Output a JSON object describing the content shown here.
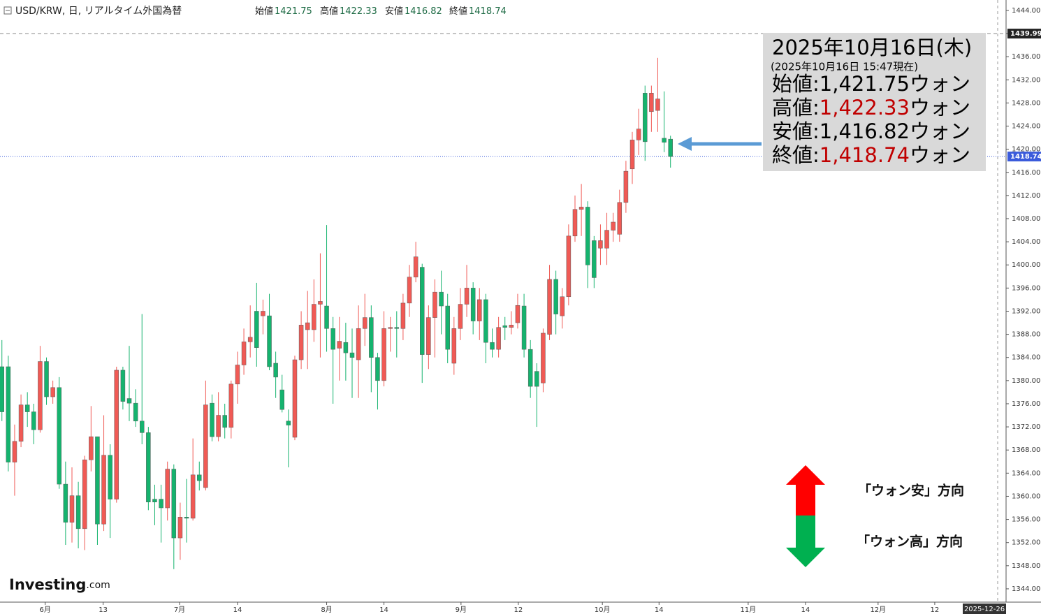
{
  "chart_data": {
    "type": "candlestick",
    "header": {
      "symbol": "USD/KRW, 日, リアルタイム外国為替",
      "items": [
        {
          "label": "始値",
          "value": "1421.75"
        },
        {
          "label": "高値",
          "value": "1422.33"
        },
        {
          "label": "安値",
          "value": "1416.82"
        },
        {
          "label": "終値",
          "value": "1418.74"
        }
      ]
    },
    "x": [
      0,
      1,
      2,
      3,
      4,
      5,
      6,
      7,
      8,
      9,
      10,
      11,
      12,
      13,
      14,
      15,
      16,
      17,
      18,
      19,
      20,
      21,
      22,
      23,
      24,
      25,
      26,
      27,
      28,
      29,
      30,
      31,
      32,
      33,
      34,
      35,
      36,
      37,
      38,
      39,
      40,
      41,
      42,
      43,
      44,
      45,
      46,
      47,
      48,
      49,
      50,
      51,
      52,
      53,
      54,
      55,
      56,
      57,
      58,
      59,
      60,
      61,
      62,
      63,
      64,
      65,
      66,
      67,
      68,
      69,
      70,
      71,
      72,
      73,
      74,
      75,
      76,
      77,
      78,
      79,
      80,
      81,
      82,
      83,
      84,
      85,
      86,
      87,
      88,
      89,
      90,
      91,
      92,
      93,
      94,
      95,
      96,
      97,
      98,
      99,
      100,
      101,
      102,
      103,
      104,
      105
    ],
    "open": [
      1382.4,
      1382.4,
      1365.9,
      1369.5,
      1375.8,
      1374.6,
      1371.5,
      1383.3,
      1377.2,
      1378.8,
      1362.1,
      1355.5,
      1360.1,
      1354.4,
      1366.3,
      1370.3,
      1355.2,
      1367.1,
      1359.5,
      1381.8,
      1376.9,
      1376.1,
      1373,
      1371,
      1359.5,
      1359.5,
      1358,
      1364.7,
      1352.8,
      1356.4,
      1356.2,
      1363.7,
      1361.5,
      1376.1,
      1370.3,
      1374,
      1371.9,
      1379.4,
      1382.7,
      1386.7,
      1392,
      1391.2,
      1391.2,
      1383,
      1378.4,
      1373,
      1370.2,
      1383.6,
      1388.8,
      1388.8,
      1393.2,
      1392.9,
      1389,
      1385.6,
      1386.6,
      1384.8,
      1383.6,
      1389,
      1390.9,
      1384,
      1380,
      1389,
      1389.2,
      1389,
      1393.4,
      1397.9,
      1399.6,
      1384.5,
      1390.9,
      1395.3,
      1392.9,
      1383,
      1389,
      1393.2,
      1396,
      1390.3,
      1394,
      1386.6,
      1385.4,
      1389.5,
      1389.2,
      1390,
      1392.9,
      1385.4,
      1381.6,
      1379.6,
      1388,
      1397.5,
      1391.2,
      1394.5,
      1405,
      1409.6,
      1410,
      1404.2,
      1402.9,
      1402.9,
      1406,
      1405.3,
      1410.8,
      1416.6,
      1421.6,
      1429.7,
      1426.5,
      1426.7,
      1421.9,
      1421.75
    ],
    "high": [
      1387,
      1384.3,
      1372.4,
      1377.6,
      1378,
      1376,
      1386,
      1384,
      1380,
      1380.6,
      1366,
      1365,
      1362.5,
      1367,
      1375.6,
      1370.3,
      1374,
      1369,
      1382.4,
      1382.4,
      1386,
      1378.5,
      1391.5,
      1372,
      1362,
      1362,
      1366,
      1365.5,
      1358.9,
      1363,
      1370,
      1366,
      1380,
      1377.6,
      1378,
      1376,
      1380,
      1385,
      1389,
      1393,
      1396.9,
      1394,
      1395,
      1385,
      1381,
      1375,
      1384.3,
      1392,
      1395.5,
      1397.5,
      1402,
      1406.9,
      1391,
      1391,
      1390,
      1389,
      1393,
      1395,
      1393,
      1384.8,
      1392,
      1391,
      1392,
      1395,
      1400,
      1404,
      1400.2,
      1393,
      1397.5,
      1399,
      1395,
      1391,
      1396,
      1400,
      1397,
      1396,
      1395,
      1389,
      1391,
      1391,
      1392,
      1395,
      1395,
      1387,
      1383,
      1389,
      1400,
      1399,
      1396,
      1407,
      1412,
      1414,
      1411,
      1405,
      1407,
      1409,
      1409,
      1413,
      1418,
      1423,
      1427,
      1431,
      1431,
      1435.8,
      1430,
      1422.33
    ],
    "low": [
      1373,
      1364.3,
      1360.1,
      1368.5,
      1372,
      1369,
      1371,
      1375.8,
      1376,
      1361.3,
      1351.6,
      1352,
      1351,
      1350.7,
      1364.3,
      1351.6,
      1354,
      1352.8,
      1358.9,
      1375,
      1373,
      1372,
      1369,
      1357.6,
      1355,
      1352,
      1355.8,
      1347.4,
      1349,
      1352,
      1355.8,
      1361,
      1361,
      1369.5,
      1369.5,
      1370,
      1370,
      1376,
      1381,
      1384,
      1382.4,
      1388,
      1381.8,
      1377,
      1374.5,
      1365,
      1369.7,
      1382,
      1382,
      1386.7,
      1384,
      1385,
      1376,
      1380,
      1380,
      1377,
      1377,
      1386,
      1378,
      1375,
      1379,
      1385,
      1384,
      1387,
      1391,
      1397,
      1379.6,
      1382,
      1384,
      1388,
      1383,
      1381,
      1387,
      1391,
      1388,
      1387,
      1383,
      1384,
      1384,
      1387,
      1388,
      1389,
      1384,
      1377,
      1372,
      1378,
      1387,
      1388,
      1389,
      1393,
      1404,
      1405,
      1396,
      1396,
      1400,
      1400,
      1404,
      1404,
      1409,
      1414,
      1419,
      1418,
      1423,
      1423,
      1419.5,
      1416.82
    ],
    "close": [
      1374.6,
      1365.9,
      1369.5,
      1375.8,
      1374.6,
      1371.5,
      1383.3,
      1377.2,
      1378.8,
      1362.1,
      1355.5,
      1360.1,
      1354.4,
      1366.3,
      1370.3,
      1355.2,
      1367.1,
      1359.5,
      1381.8,
      1376.4,
      1376.1,
      1373,
      1371,
      1359,
      1359,
      1358,
      1364.7,
      1352.8,
      1356.4,
      1356.2,
      1363.7,
      1362.7,
      1375.8,
      1370.3,
      1374,
      1371.9,
      1379.4,
      1382.7,
      1386.7,
      1387.5,
      1385.7,
      1392,
      1382.4,
      1380.6,
      1375,
      1372.3,
      1383.6,
      1389.6,
      1390,
      1393.2,
      1393.7,
      1389,
      1385.4,
      1386.8,
      1384.8,
      1384,
      1389,
      1390.9,
      1384,
      1380,
      1389,
      1389.2,
      1389,
      1393.4,
      1397.9,
      1401.4,
      1384.5,
      1390.9,
      1395.3,
      1392.9,
      1385.4,
      1389,
      1393.2,
      1396,
      1390.3,
      1394,
      1386.6,
      1385.4,
      1389.2,
      1389.2,
      1389.6,
      1393,
      1385.4,
      1379,
      1379,
      1388.2,
      1397.5,
      1391.5,
      1394.5,
      1405,
      1409.6,
      1410,
      1400,
      1397.8,
      1404.2,
      1406,
      1407.4,
      1410.8,
      1416.2,
      1421.6,
      1423.5,
      1421.3,
      1429.7,
      1428.7,
      1421.2,
      1418.74
    ],
    "up_color": "#f05a55",
    "down_color": "#15b36e",
    "xlim": [
      -0.3,
      157.7
    ],
    "xticks": [
      {
        "value": 6.8,
        "label": "6月"
      },
      {
        "value": 15.9,
        "label": "13"
      },
      {
        "value": 27.9,
        "label": "7月"
      },
      {
        "value": 37,
        "label": "14"
      },
      {
        "value": 51,
        "label": "8月"
      },
      {
        "value": 60,
        "label": "14"
      },
      {
        "value": 72.1,
        "label": "9月"
      },
      {
        "value": 81.1,
        "label": "12"
      },
      {
        "value": 94.3,
        "label": "10月"
      },
      {
        "value": 103.2,
        "label": "14"
      },
      {
        "value": 117.2,
        "label": "11月"
      },
      {
        "value": 126.2,
        "label": "14"
      },
      {
        "value": 137.6,
        "label": "12月"
      },
      {
        "value": 146.5,
        "label": "12"
      }
    ],
    "x_end_label": "2025-12-26",
    "ylim": [
      1341.7,
      1445.8
    ],
    "yticks": [
      {
        "value": 1344,
        "label": "1344.00"
      },
      {
        "value": 1348,
        "label": "1348.00"
      },
      {
        "value": 1352,
        "label": "1352.00"
      },
      {
        "value": 1356,
        "label": "1356.00"
      },
      {
        "value": 1360,
        "label": "1360.00"
      },
      {
        "value": 1364,
        "label": "1364.00"
      },
      {
        "value": 1368,
        "label": "1368.00"
      },
      {
        "value": 1372,
        "label": "1372.00"
      },
      {
        "value": 1376,
        "label": "1376.00"
      },
      {
        "value": 1380,
        "label": "1380.00"
      },
      {
        "value": 1384,
        "label": "1384.00"
      },
      {
        "value": 1388,
        "label": "1388.00"
      },
      {
        "value": 1392,
        "label": "1392.00"
      },
      {
        "value": 1396,
        "label": "1396.00"
      },
      {
        "value": 1400,
        "label": "1400.00"
      },
      {
        "value": 1404,
        "label": "1404.00"
      },
      {
        "value": 1408,
        "label": "1408.00"
      },
      {
        "value": 1412,
        "label": "1412.00"
      },
      {
        "value": 1416,
        "label": "1416.00"
      },
      {
        "value": 1420,
        "label": "1420.00"
      },
      {
        "value": 1424,
        "label": "1424.00"
      },
      {
        "value": 1428,
        "label": "1428.00"
      },
      {
        "value": 1432,
        "label": "1432.00"
      },
      {
        "value": 1436,
        "label": "1436.00"
      },
      {
        "value": 1440,
        "label": "1440.00"
      },
      {
        "value": 1444,
        "label": "1444.00"
      }
    ],
    "high_marker": 1439.99,
    "last_marker": 1418.74,
    "annotation": {
      "title": "2025年10月16日(木)",
      "subtitle": "(2025年10月16日 15:47現在)",
      "separator": ":",
      "unit": "ウォン",
      "highlight_color": "#c00000",
      "rows": [
        {
          "label": "始値",
          "value": "1,421.75",
          "highlight": false
        },
        {
          "label": "高値",
          "value": "1,422.33",
          "highlight": true
        },
        {
          "label": "安値",
          "value": "1,416.82",
          "highlight": false
        },
        {
          "label": "終値",
          "value": "1,418.74",
          "highlight": true
        }
      ]
    },
    "direction": {
      "up": "「ウォン安」方向",
      "down": "「ウォン高」方向"
    },
    "logo": {
      "name": "Investing",
      "suffix": ".com"
    }
  }
}
